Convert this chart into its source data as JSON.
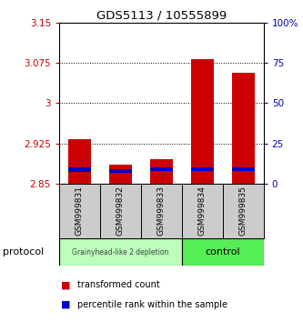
{
  "title": "GDS5113 / 10555899",
  "samples": [
    "GSM999831",
    "GSM999832",
    "GSM999833",
    "GSM999834",
    "GSM999835"
  ],
  "red_values": [
    2.932,
    2.885,
    2.895,
    3.082,
    3.057
  ],
  "blue_values": [
    2.876,
    2.874,
    2.877,
    2.877,
    2.877
  ],
  "red_base": 2.85,
  "ylim": [
    2.85,
    3.15
  ],
  "yticks_left": [
    2.85,
    2.925,
    3.0,
    3.075,
    3.15
  ],
  "yticks_right": [
    0,
    25,
    50,
    75,
    100
  ],
  "ytick_labels_left": [
    "2.85",
    "2.925",
    "3",
    "3.075",
    "3.15"
  ],
  "ytick_labels_right": [
    "0",
    "25",
    "50",
    "75",
    "100%"
  ],
  "grid_lines": [
    2.925,
    3.0,
    3.075
  ],
  "group1_count": 3,
  "group2_count": 2,
  "group1_label": "Grainyhead-like 2 depletion",
  "group2_label": "control",
  "group1_color": "#bbffbb",
  "group2_color": "#55ee55",
  "protocol_label": "protocol",
  "legend_red": "transformed count",
  "legend_blue": "percentile rank within the sample",
  "bar_color_red": "#cc0000",
  "bar_color_blue": "#0000cc",
  "bar_width": 0.55,
  "left_tick_color": "#cc0000",
  "right_tick_color": "#0000bb",
  "sample_box_color": "#cccccc",
  "blue_bar_height": 0.007
}
